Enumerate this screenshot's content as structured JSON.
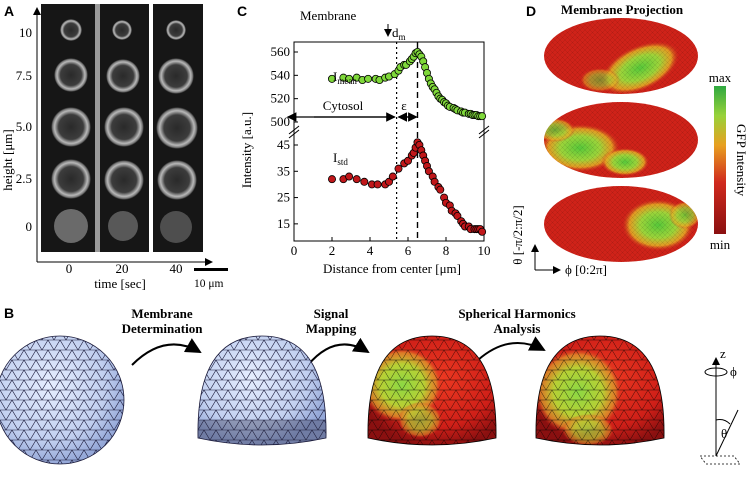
{
  "panels": {
    "A": {
      "label": "A",
      "ylabel": "height [μm]",
      "yticks": [
        "10",
        "7.5",
        "5.0",
        "2.5",
        "0"
      ],
      "xlabel": "time [sec]",
      "xticks": [
        "0",
        "20",
        "40"
      ],
      "scalebar": "10 μm"
    },
    "B": {
      "label": "B",
      "steps": [
        {
          "line1": "Membrane",
          "line2": "Determination"
        },
        {
          "line1": "Signal",
          "line2": "Mapping"
        },
        {
          "line1": "Spherical Harmonics",
          "line2": "Analysis"
        }
      ],
      "axes": {
        "z": "z",
        "phi": "ϕ",
        "theta": "θ"
      }
    },
    "C": {
      "label": "C",
      "membrane_label": "Membrane",
      "dm_label": "d",
      "dm_sub": "m",
      "cytosol_label": "Cytosol",
      "epsilon_label": "ε",
      "imean_label": "I",
      "imean_sub": "mean",
      "istd_label": "I",
      "istd_sub": "std"
    },
    "D": {
      "label": "D",
      "title": "Membrane Projection",
      "colorbar_max": "max",
      "colorbar_min": "min",
      "colorbar_label": "GFP Intensity",
      "theta_axis": "θ [-π/2:π/2]",
      "phi_axis": "ϕ [0:2π]",
      "colors": {
        "low": "#c81e1e",
        "mid": "#f0a020",
        "high": "#55cc33"
      }
    }
  },
  "chart_data": {
    "type": "scatter",
    "xlabel": "Distance from center [μm]",
    "ylabel": "Intensity [a.u.]",
    "xlim": [
      0,
      10
    ],
    "xticks": [
      "0",
      "2",
      "4",
      "6",
      "8",
      "10"
    ],
    "upper_yticks": [
      "500",
      "520",
      "540",
      "560"
    ],
    "lower_yticks": [
      "15",
      "25",
      "35",
      "45"
    ],
    "cytosol_boundary": 5.4,
    "membrane_position": 6.5,
    "series": [
      {
        "name": "I_mean",
        "color": "#7fd83a",
        "x": [
          2.0,
          2.6,
          2.9,
          3.3,
          3.6,
          3.9,
          4.3,
          4.5,
          4.8,
          5.0,
          5.3,
          5.5,
          5.6,
          5.8,
          5.9,
          6.1,
          6.2,
          6.3,
          6.4,
          6.5,
          6.6,
          6.7,
          6.8,
          6.9,
          7.0,
          7.1,
          7.2,
          7.3,
          7.4,
          7.5,
          7.6,
          7.7,
          7.8,
          7.9,
          8.0,
          8.1,
          8.2,
          8.4,
          8.5,
          8.6,
          8.8,
          8.9,
          9.0,
          9.2,
          9.3,
          9.4,
          9.5,
          9.6,
          9.7,
          9.8,
          9.9
        ],
        "y": [
          537,
          538,
          537,
          538,
          536,
          537,
          537,
          536,
          538,
          539,
          541,
          544,
          547,
          549,
          549,
          552,
          554,
          556,
          559,
          560,
          558,
          556,
          552,
          547,
          542,
          537,
          533,
          530,
          528,
          525,
          522,
          520,
          519,
          517,
          516,
          514,
          513,
          512,
          511,
          510,
          509,
          508,
          508,
          507,
          507,
          506,
          506,
          506,
          505,
          505,
          505
        ]
      },
      {
        "name": "I_std",
        "color": "#c0171a",
        "x": [
          2.0,
          2.6,
          2.9,
          3.3,
          3.7,
          4.1,
          4.4,
          4.8,
          5.0,
          5.2,
          5.5,
          5.8,
          6.0,
          6.2,
          6.3,
          6.4,
          6.5,
          6.6,
          6.7,
          6.8,
          6.9,
          7.0,
          7.1,
          7.3,
          7.4,
          7.6,
          7.7,
          7.9,
          8.0,
          8.2,
          8.3,
          8.5,
          8.6,
          8.8,
          8.9,
          9.0,
          9.2,
          9.3,
          9.5,
          9.6,
          9.7,
          9.8,
          9.9
        ],
        "y": [
          32,
          32,
          33,
          32,
          31,
          30,
          30,
          30,
          31,
          33,
          36,
          38,
          39,
          41,
          42,
          44,
          46,
          45,
          43,
          41,
          39,
          37,
          35,
          33,
          31,
          29,
          28,
          25,
          23,
          22,
          20,
          19,
          18,
          16,
          15,
          14,
          14,
          13,
          13,
          13,
          13,
          13,
          12
        ]
      }
    ]
  }
}
